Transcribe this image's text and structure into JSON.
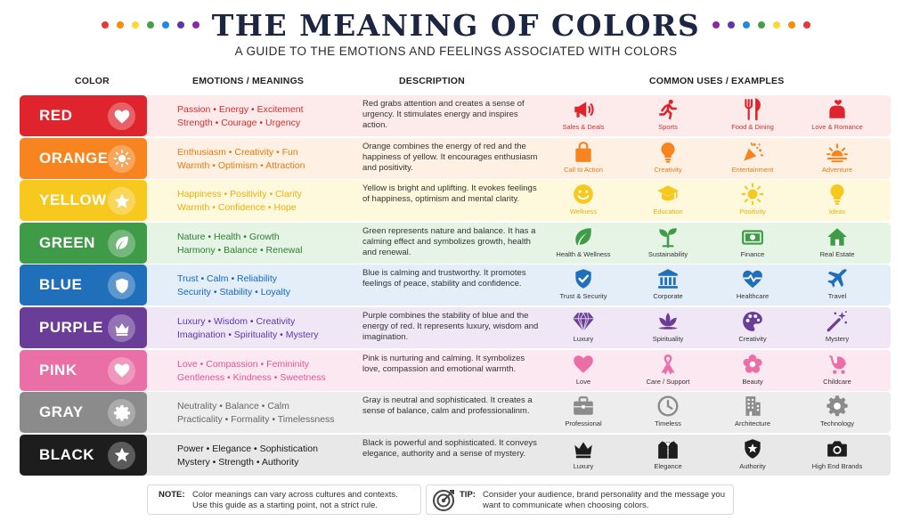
{
  "header": {
    "title": "THE MEANING OF COLORS",
    "subtitle": "A GUIDE TO THE EMOTIONS AND FEELINGS ASSOCIATED WITH COLORS",
    "dot_colors": [
      "#e53935",
      "#fb8c00",
      "#fdd835",
      "#43a047",
      "#1e88e5",
      "#5e35b1",
      "#8e24aa"
    ]
  },
  "columns": {
    "color": "COLOR",
    "emotions": "EMOTIONS / MEANINGS",
    "description": "DESCRIPTION",
    "uses": "COMMON USES / EXAMPLES"
  },
  "rows": [
    {
      "name": "RED",
      "color": "#e0242e",
      "tint": "#fdeaea",
      "text_color": "#d32f2f",
      "icon": "heart-icon",
      "emotions_1": "Passion • Energy • Excitement",
      "emotions_2": "Strength • Courage • Urgency",
      "description": "Red grabs attention and creates a sense of urgency. It stimulates energy and inspires action.",
      "uses": [
        {
          "label": "Sales & Deals",
          "icon": "megaphone-icon"
        },
        {
          "label": "Sports",
          "icon": "runner-icon"
        },
        {
          "label": "Food & Dining",
          "icon": "fork-knife-icon"
        },
        {
          "label": "Love & Romance",
          "icon": "love-icon"
        }
      ]
    },
    {
      "name": "ORANGE",
      "color": "#f7841f",
      "tint": "#fef0e2",
      "text_color": "#e67a12",
      "icon": "sun-icon",
      "emotions_1": "Enthusiasm • Creativity • Fun",
      "emotions_2": "Warmth • Optimism • Attraction",
      "description": "Orange combines the energy of red and the happiness of yellow. It encourages enthusiasm and positivity.",
      "uses": [
        {
          "label": "Call to Action",
          "icon": "shopping-bag-icon"
        },
        {
          "label": "Creativity",
          "icon": "lightbulb-icon"
        },
        {
          "label": "Entertainment",
          "icon": "party-popper-icon"
        },
        {
          "label": "Adventure",
          "icon": "sunrise-icon"
        }
      ]
    },
    {
      "name": "YELLOW",
      "color": "#f7c81e",
      "tint": "#fef8dc",
      "text_color": "#e8b10c",
      "icon": "star-icon",
      "emotions_1": "Happiness • Positivity • Clarity",
      "emotions_2": "Warmth • Confidence • Hope",
      "description": "Yellow is bright and uplifting. It evokes feelings of happiness, optimism and mental clarity.",
      "uses": [
        {
          "label": "Wellness",
          "icon": "smiley-icon"
        },
        {
          "label": "Education",
          "icon": "graduation-cap-icon"
        },
        {
          "label": "Positivity",
          "icon": "sun-icon"
        },
        {
          "label": "Ideas",
          "icon": "lightbulb-icon"
        }
      ]
    },
    {
      "name": "GREEN",
      "color": "#3f9b48",
      "tint": "#e6f4e6",
      "text_color": "#2e7d32",
      "icon": "leaf-icon",
      "emotions_1": "Nature • Health • Growth",
      "emotions_2": "Harmony • Balance • Renewal",
      "description": "Green represents nature and balance. It has a calming effect and symbolizes growth, health and renewal.",
      "uses": [
        {
          "label": "Health & Wellness",
          "icon": "leaf-icon"
        },
        {
          "label": "Sustainability",
          "icon": "sprout-icon"
        },
        {
          "label": "Finance",
          "icon": "money-icon"
        },
        {
          "label": "Real Estate",
          "icon": "house-icon"
        }
      ]
    },
    {
      "name": "BLUE",
      "color": "#1f6fba",
      "tint": "#e3eef9",
      "text_color": "#1565c0",
      "icon": "shield-icon",
      "emotions_1": "Trust • Calm • Reliability",
      "emotions_2": "Security • Stability • Loyalty",
      "description": "Blue is calming and trustworthy. It promotes feelings of peace, stability and confidence.",
      "uses": [
        {
          "label": "Trust & Security",
          "icon": "shield-check-icon"
        },
        {
          "label": "Corporate",
          "icon": "bank-icon"
        },
        {
          "label": "Healthcare",
          "icon": "heart-pulse-icon"
        },
        {
          "label": "Travel",
          "icon": "airplane-icon"
        }
      ]
    },
    {
      "name": "PURPLE",
      "color": "#6a3d98",
      "tint": "#efe7f6",
      "text_color": "#5e35b1",
      "icon": "crown-icon",
      "emotions_1": "Luxury • Wisdom • Creativity",
      "emotions_2": "Imagination • Spirituality • Mystery",
      "description": "Purple combines the stability of blue and the energy of red. It represents luxury, wisdom and imagination.",
      "uses": [
        {
          "label": "Luxury",
          "icon": "diamond-icon"
        },
        {
          "label": "Spirituality",
          "icon": "lotus-icon"
        },
        {
          "label": "Creativity",
          "icon": "palette-icon"
        },
        {
          "label": "Mystery",
          "icon": "magic-wand-icon"
        }
      ]
    },
    {
      "name": "PINK",
      "color": "#ea6fa6",
      "tint": "#fce8f1",
      "text_color": "#e05594",
      "icon": "heart-icon",
      "emotions_1": "Love • Compassion • Femininity",
      "emotions_2": "Gentleness • Kindness • Sweetness",
      "description": "Pink is nurturing and calming. It symbolizes love, compassion and emotional warmth.",
      "uses": [
        {
          "label": "Love",
          "icon": "heart-icon"
        },
        {
          "label": "Care / Support",
          "icon": "ribbon-icon"
        },
        {
          "label": "Beauty",
          "icon": "flower-icon"
        },
        {
          "label": "Childcare",
          "icon": "stroller-icon"
        }
      ]
    },
    {
      "name": "GRAY",
      "color": "#8b8b8b",
      "tint": "#ededed",
      "text_color": "#666666",
      "icon": "gear-icon",
      "emotions_1": "Neutrality • Balance • Calm",
      "emotions_2": "Practicality • Formality • Timelessness",
      "description": "Gray is neutral and sophisticated. It creates a sense of balance, calm and professionalinm.",
      "uses": [
        {
          "label": "Professional",
          "icon": "briefcase-icon"
        },
        {
          "label": "Timeless",
          "icon": "clock-icon"
        },
        {
          "label": "Architecture",
          "icon": "building-icon"
        },
        {
          "label": "Technology",
          "icon": "gear-icon"
        }
      ]
    },
    {
      "name": "BLACK",
      "color": "#1d1d1d",
      "tint": "#e8e8e8",
      "text_color": "#1a1a1a",
      "icon": "star-icon",
      "emotions_1": "Power • Elegance • Sophistication",
      "emotions_2": "Mystery • Strength • Authority",
      "description": "Black is powerful and sophisticated. It conveys elegance, authority and a sense of mystery.",
      "uses": [
        {
          "label": "Luxury",
          "icon": "crown-icon"
        },
        {
          "label": "Elegance",
          "icon": "tuxedo-icon"
        },
        {
          "label": "Authority",
          "icon": "shield-star-icon"
        },
        {
          "label": "High End Brands",
          "icon": "camera-icon"
        }
      ]
    }
  ],
  "footer": {
    "note_label": "NOTE:",
    "note_text": "Color meanings can vary across cultures and contexts. Use this guide as a starting point, not a strict rule.",
    "tip_label": "TIP:",
    "tip_text": "Consider your audience, brand personality and the message you want to communicate when choosing colors.",
    "tip_icon": "target-icon"
  }
}
